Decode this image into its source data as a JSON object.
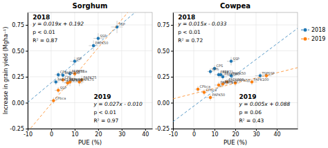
{
  "chart_data": [
    {
      "type": "scatter",
      "title": "Sorghum",
      "xlabel": "PUE (%)",
      "ylabel": "Increase in grain yield (Mgha⁻¹)",
      "xlim": [
        -10,
        43
      ],
      "ylim": [
        -0.25,
        0.87
      ],
      "xticks": [
        -10,
        0,
        10,
        20,
        30,
        40
      ],
      "yticks": [
        -0.25,
        {
          "value": 0.0,
          "label": "0.00"
        },
        0.25,
        {
          "value": 0.5,
          "label": "0.50"
        },
        0.75
      ],
      "grid": true,
      "series": [
        {
          "name": "2018",
          "x": [
            2,
            3,
            5,
            7,
            8,
            10,
            18,
            20,
            28
          ],
          "values": [
            0.2,
            0.27,
            0.265,
            0.195,
            0.28,
            0.4,
            0.55,
            0.62,
            0.73
          ],
          "labels": [
            "PAPK100",
            "CPh",
            "PAPK100",
            "PAPK50",
            "PAPK75",
            "JSP",
            "PAPK50",
            "SSP",
            "TSP"
          ],
          "xerr": [
            1.5,
            1.5,
            2.0,
            1.5,
            2.0,
            2.0,
            2.0,
            2.0,
            2.5
          ],
          "yerr": [
            0.03,
            0.03,
            0.03,
            0.03,
            0.04,
            0.04,
            0.05,
            0.05,
            0.06
          ],
          "slope": 0.019,
          "intercept": 0.192,
          "equation": "y = 0.019x + 0.192",
          "p_value": "p < 0.01",
          "r2": "R² = 0.87"
        },
        {
          "name": "2019",
          "x": [
            1,
            3,
            5,
            7,
            8,
            10,
            12,
            13
          ],
          "values": [
            0.02,
            0.12,
            0.22,
            0.19,
            0.2,
            0.28,
            0.2,
            0.22
          ],
          "labels": [
            "CPbca",
            "SSP",
            "CPh",
            "PAPK75",
            "CPbca",
            "CPbca",
            "PAPK75",
            "PAPK75"
          ],
          "xerr": [
            1.5,
            1.5,
            2.0,
            1.5,
            2.0,
            2.0,
            2.0,
            2.0
          ],
          "yerr": [
            0.03,
            0.03,
            0.03,
            0.03,
            0.04,
            0.04,
            0.04,
            0.04
          ],
          "slope": 0.027,
          "intercept": -0.01,
          "equation": "y = 0.027x - 0.010",
          "p_value": "p < 0.01",
          "r2": "R² = 0.97"
        }
      ]
    },
    {
      "type": "scatter",
      "title": "Cowpea",
      "xlabel": "PUE (%)",
      "xlim": [
        -10,
        50
      ],
      "ylim": [
        -0.25,
        0.87
      ],
      "xticks": [
        -10,
        0,
        10,
        20,
        30,
        40
      ],
      "yticks": [
        -0.25,
        {
          "value": 0.0,
          "label": "0.00"
        },
        0.25,
        {
          "value": 0.5,
          "label": "0.50"
        },
        0.75
      ],
      "grid": true,
      "legend": "right",
      "series": [
        {
          "name": "2018",
          "x": [
            8,
            10,
            13,
            14,
            12,
            18,
            18,
            32
          ],
          "values": [
            0.3,
            0.33,
            0.27,
            0.25,
            0.27,
            0.26,
            0.4,
            0.26
          ],
          "labels": [
            "CPh",
            "CPS",
            "TSP",
            "PAPK000",
            "PAPK71",
            "PAPK50",
            "SSP",
            "TSP"
          ],
          "xerr": [
            1.5,
            1.5,
            2.0,
            2.0,
            2.0,
            2.0,
            2.0,
            2.5
          ],
          "yerr": [
            0.03,
            0.03,
            0.03,
            0.03,
            0.03,
            0.03,
            0.04,
            0.03
          ],
          "slope": 0.015,
          "intercept": -0.033,
          "equation": "y = 0.015x - 0.033",
          "p_value": "p < 0.01",
          "r2": "R² = 0.72"
        },
        {
          "name": "2019",
          "x": [
            2,
            5,
            8,
            12,
            14,
            16,
            20,
            28,
            35
          ],
          "values": [
            0.13,
            0.1,
            0.05,
            0.17,
            0.18,
            0.2,
            0.19,
            0.2,
            0.26
          ],
          "labels": [
            "CPbca",
            "CPbca",
            "PAPK50",
            "PAPK71",
            "PAPK50",
            "PAPK000",
            "PAPK50",
            "PAPK100",
            "SSP"
          ],
          "xerr": [
            1.5,
            1.5,
            2.0,
            2.0,
            2.0,
            2.0,
            2.0,
            2.5,
            2.5
          ],
          "yerr": [
            0.03,
            0.03,
            0.03,
            0.03,
            0.03,
            0.03,
            0.03,
            0.03,
            0.03
          ],
          "slope": 0.005,
          "intercept": 0.088,
          "equation": "y = 0.005x + 0.088",
          "p_value": "p = 0.06",
          "r2": "R² = 0.43"
        }
      ]
    }
  ]
}
